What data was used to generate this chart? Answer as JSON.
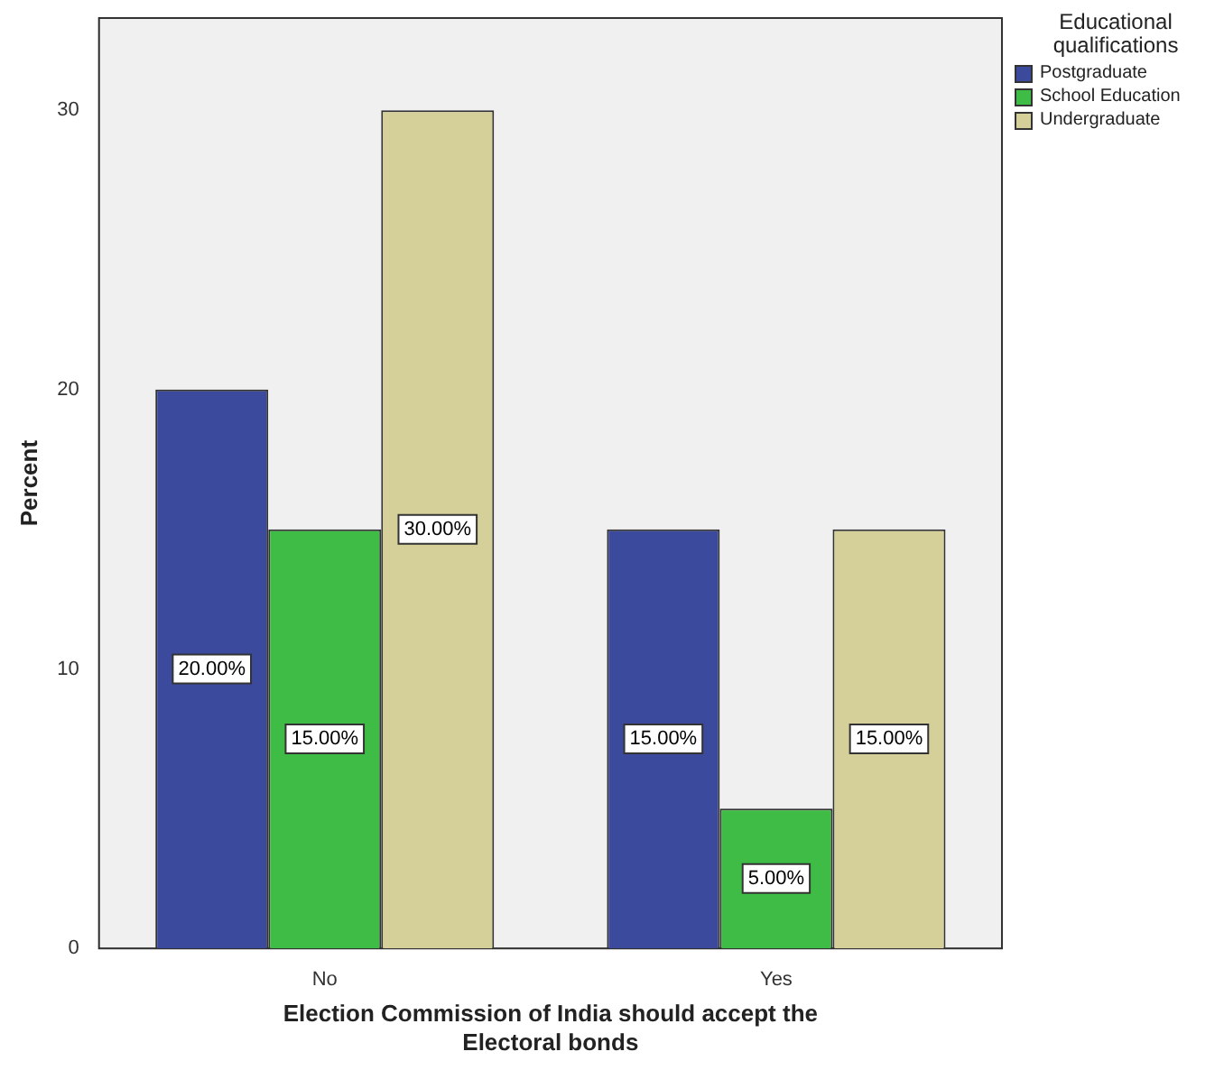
{
  "chart_data": {
    "type": "bar",
    "xlabel": "Election Commission of India should accept the\nElectoral bonds",
    "ylabel": "Percent",
    "legend_title": "Educational qualifications",
    "categories": [
      "No",
      "Yes"
    ],
    "series": [
      {
        "name": "Postgraduate",
        "color": "#3b4a9c",
        "values": [
          20,
          15
        ],
        "value_labels": [
          "20.00%",
          "15.00%"
        ]
      },
      {
        "name": "School Education",
        "color": "#3fbc45",
        "values": [
          15,
          5
        ],
        "value_labels": [
          "15.00%",
          "5.00%"
        ]
      },
      {
        "name": "Undergraduate",
        "color": "#d5cf9a",
        "values": [
          30,
          15
        ],
        "value_labels": [
          "30.00%",
          "15.00%"
        ]
      }
    ],
    "ylim": [
      0,
      33.3
    ],
    "yticks": [
      0,
      10,
      20,
      30
    ],
    "grid": false,
    "legend": "top right"
  }
}
